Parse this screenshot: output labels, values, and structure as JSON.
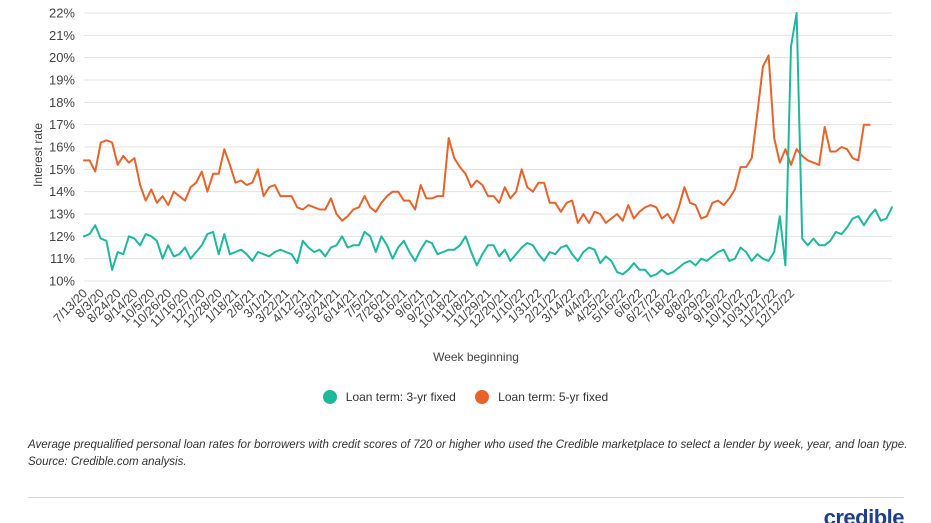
{
  "chart_data": {
    "type": "line",
    "xlabel": "Week beginning",
    "ylabel": "Interest rate",
    "ylim": [
      10,
      22
    ],
    "y_ticks": [
      "22%",
      "21%",
      "20%",
      "19%",
      "18%",
      "17%",
      "16%",
      "15%",
      "14%",
      "13%",
      "12%",
      "11%",
      "10%"
    ],
    "tick_labels": [
      "7/13/20",
      "8/3/20",
      "8/24/20",
      "9/14/20",
      "10/5/20",
      "10/26/20",
      "11/16/20",
      "12/7/20",
      "12/28/20",
      "1/18/21",
      "2/8/21",
      "3/1/21",
      "3/22/21",
      "4/12/21",
      "5/3/21",
      "5/24/21",
      "6/14/21",
      "7/5/21",
      "7/26/21",
      "8/16/21",
      "9/6/21",
      "9/27/21",
      "10/18/21",
      "11/8/21",
      "11/29/21",
      "12/20/21",
      "1/10/22",
      "1/31/22",
      "2/21/22",
      "3/14/22",
      "4/4/22",
      "4/25/22",
      "5/16/22",
      "6/6/22",
      "6/27/22",
      "7/18/22",
      "8/8/22",
      "8/29/22",
      "9/19/22",
      "10/10/22",
      "10/31/22",
      "11/21/22",
      "12/12/22"
    ],
    "grid": true,
    "legend_position": "bottom",
    "series": [
      {
        "name": "Loan term: 3-yr fixed",
        "color": "#1fb89c",
        "values": [
          12.0,
          12.1,
          12.5,
          11.9,
          11.8,
          10.5,
          11.3,
          11.2,
          12.0,
          11.9,
          11.6,
          12.1,
          12.0,
          11.8,
          11.0,
          11.6,
          11.1,
          11.2,
          11.5,
          11.0,
          11.3,
          11.6,
          12.1,
          12.2,
          11.2,
          12.1,
          11.2,
          11.3,
          11.4,
          11.2,
          10.9,
          11.3,
          11.2,
          11.1,
          11.3,
          11.4,
          11.3,
          11.2,
          10.8,
          11.8,
          11.5,
          11.3,
          11.4,
          11.1,
          11.5,
          11.6,
          12.0,
          11.5,
          11.6,
          11.6,
          12.2,
          12.0,
          11.3,
          12.0,
          11.6,
          11.0,
          11.5,
          11.8,
          11.3,
          10.9,
          11.4,
          11.8,
          11.7,
          11.2,
          11.3,
          11.4,
          11.4,
          11.6,
          12.0,
          11.3,
          10.7,
          11.2,
          11.6,
          11.6,
          11.1,
          11.4,
          10.9,
          11.2,
          11.5,
          11.7,
          11.6,
          11.2,
          10.9,
          11.3,
          11.2,
          11.5,
          11.6,
          11.2,
          10.9,
          11.3,
          11.5,
          11.4,
          10.8,
          11.1,
          10.9,
          10.4,
          10.3,
          10.5,
          10.8,
          10.5,
          10.5,
          10.2,
          10.3,
          10.5,
          10.3,
          10.4,
          10.6,
          10.8,
          10.9,
          10.7,
          11.0,
          10.9,
          11.1,
          11.3,
          11.4,
          10.9,
          11.0,
          11.5,
          11.3,
          10.9,
          11.2,
          11.0,
          10.9,
          11.3,
          12.9,
          10.7,
          20.5,
          22.0,
          11.9,
          11.6,
          11.9,
          11.6,
          11.6,
          11.8,
          12.2,
          12.1,
          12.4,
          12.8,
          12.9,
          12.5,
          12.9,
          13.2,
          12.7,
          12.8,
          13.3
        ]
      },
      {
        "name": "Loan term: 5-yr fixed",
        "color": "#e8632c",
        "values": [
          15.4,
          15.4,
          14.9,
          16.2,
          16.3,
          16.2,
          15.2,
          15.6,
          15.3,
          15.5,
          14.3,
          13.6,
          14.1,
          13.5,
          13.8,
          13.4,
          14.0,
          13.8,
          13.6,
          14.2,
          14.4,
          14.9,
          14.0,
          14.8,
          14.8,
          15.9,
          15.2,
          14.4,
          14.5,
          14.3,
          14.4,
          15.0,
          13.8,
          14.2,
          14.3,
          13.8,
          13.8,
          13.8,
          13.3,
          13.2,
          13.4,
          13.3,
          13.2,
          13.2,
          13.7,
          13.0,
          12.7,
          12.9,
          13.2,
          13.3,
          13.8,
          13.3,
          13.1,
          13.5,
          13.8,
          14.0,
          14.0,
          13.6,
          13.6,
          13.2,
          14.3,
          13.7,
          13.7,
          13.8,
          13.8,
          16.4,
          15.5,
          15.1,
          14.8,
          14.2,
          14.5,
          14.3,
          13.8,
          13.8,
          13.5,
          14.2,
          13.7,
          14.0,
          15.0,
          14.2,
          14.0,
          14.4,
          14.4,
          13.5,
          13.5,
          13.1,
          13.5,
          13.6,
          12.6,
          13.0,
          12.6,
          13.1,
          13.0,
          12.6,
          12.8,
          13.0,
          12.7,
          13.4,
          12.8,
          13.1,
          13.3,
          13.4,
          13.3,
          12.8,
          13.0,
          12.6,
          13.3,
          14.2,
          13.5,
          13.4,
          12.8,
          12.9,
          13.5,
          13.6,
          13.4,
          13.7,
          14.1,
          15.1,
          15.1,
          15.5,
          17.5,
          19.6,
          20.1,
          16.4,
          15.3,
          15.9,
          15.2,
          15.9,
          15.6,
          15.4,
          15.3,
          15.2,
          16.9,
          15.8,
          15.8,
          16.0,
          15.9,
          15.5,
          15.4,
          17.0,
          17.0
        ]
      }
    ]
  },
  "caption": "Average prequalified personal loan rates for borrowers with credit scores of 720 or higher who used the Credible marketplace to select a lender by week, year, and loan type. Source: Credible.com analysis.",
  "logo_text": "credible"
}
